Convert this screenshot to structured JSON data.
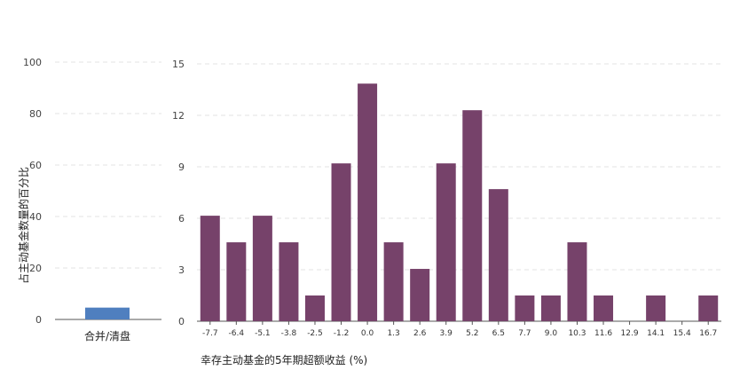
{
  "chart_data": [
    {
      "type": "bar",
      "categories": [
        "合并/清盘"
      ],
      "values": [
        4.6
      ],
      "ylabel": "占主动基金数量的百分比",
      "xlabel": "",
      "ylim": [
        0,
        100
      ],
      "yticks": [
        0,
        20,
        40,
        60,
        80,
        100
      ],
      "grid": true,
      "colors": {
        "bar": "#4f7fbf"
      }
    },
    {
      "type": "bar",
      "categories": [
        "-7.7",
        "-6.4",
        "-5.1",
        "-3.8",
        "-2.5",
        "-1.2",
        "0.0",
        "1.3",
        "2.6",
        "3.9",
        "5.2",
        "6.5",
        "7.7",
        "9.0",
        "10.3",
        "11.6",
        "12.9",
        "14.1",
        "15.4",
        "16.7"
      ],
      "values": [
        6.15,
        4.6,
        6.15,
        4.6,
        1.5,
        9.2,
        13.85,
        4.6,
        3.05,
        9.2,
        12.3,
        7.7,
        1.5,
        1.5,
        4.6,
        1.5,
        0,
        1.5,
        0,
        1.5
      ],
      "xlabel": "幸存主动基金的5年期超额收益 (%)",
      "ylabel": "",
      "ylim": [
        0,
        15
      ],
      "yticks": [
        0,
        3,
        6,
        9,
        12,
        15
      ],
      "grid": true,
      "colors": {
        "bar": "#76426a"
      }
    }
  ]
}
